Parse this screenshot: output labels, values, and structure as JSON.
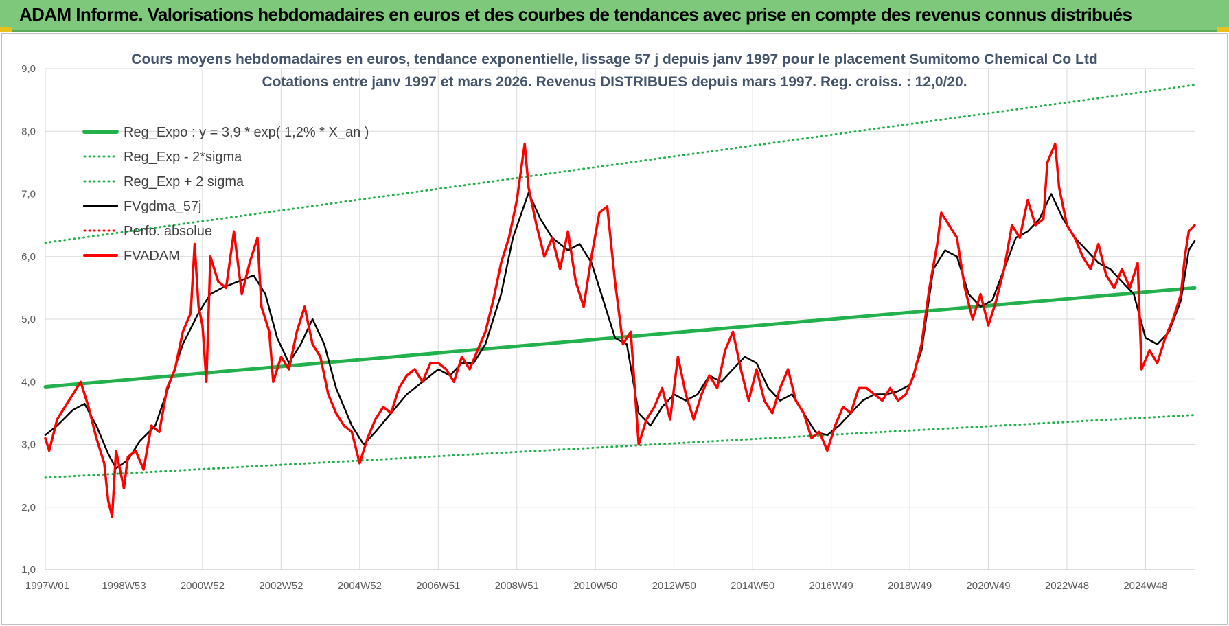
{
  "banner": {
    "title": "ADAM Informe. Valorisations hebdomadaires en euros et des courbes de tendances avec prise en compte des revenus connus distribués",
    "accent": "#7dc87a"
  },
  "chart_data": {
    "type": "line",
    "title": "Cours moyens hebdomadaires en euros, tendance exponentielle, lissage 57 j depuis janv 1997 pour le placement Sumitomo Chemical Co Ltd",
    "subtitle": "Cotations entre janv 1997 et mars 2026. Revenus DISTRIBUES depuis mars 1997. Reg. croiss. : 12,0/20.",
    "xlabel": "",
    "ylabel": "",
    "ylim": [
      1.0,
      9.0
    ],
    "xlim": [
      1997.0,
      2026.25
    ],
    "y_ticks": [
      "1,0",
      "2,0",
      "3,0",
      "4,0",
      "5,0",
      "6,0",
      "7,0",
      "8,0",
      "9,0"
    ],
    "x_ticks": [
      {
        "label": "1997W01",
        "x": 1997.0
      },
      {
        "label": "1998W53",
        "x": 1999.0
      },
      {
        "label": "2000W52",
        "x": 2001.0
      },
      {
        "label": "2002W52",
        "x": 2003.0
      },
      {
        "label": "2004W52",
        "x": 2005.0
      },
      {
        "label": "2006W51",
        "x": 2007.0
      },
      {
        "label": "2008W51",
        "x": 2009.0
      },
      {
        "label": "2010W50",
        "x": 2011.0
      },
      {
        "label": "2012W50",
        "x": 2013.0
      },
      {
        "label": "2014W50",
        "x": 2015.0
      },
      {
        "label": "2016W49",
        "x": 2017.0
      },
      {
        "label": "2018W49",
        "x": 2019.0
      },
      {
        "label": "2020W49",
        "x": 2021.0
      },
      {
        "label": "2022W48",
        "x": 2023.0
      },
      {
        "label": "2024W48",
        "x": 2025.0
      }
    ],
    "grid": true,
    "legend_position": "top-left",
    "series": [
      {
        "name": "Reg_Expo : y = 3,9 * exp( 1,2% *  X_an )",
        "color": "#22b14c",
        "style": "solid",
        "width": 5,
        "points": [
          [
            1997.0,
            3.92
          ],
          [
            2026.25,
            5.5
          ]
        ]
      },
      {
        "name": "Reg_Exp - 2*sigma",
        "color": "#22b14c",
        "style": "dotted",
        "width": 3,
        "points": [
          [
            1997.0,
            2.47
          ],
          [
            2026.25,
            3.47
          ]
        ]
      },
      {
        "name": "Reg_Exp + 2 sigma",
        "color": "#22b14c",
        "style": "dotted",
        "width": 3,
        "points": [
          [
            1997.0,
            6.22
          ],
          [
            2026.25,
            8.74
          ]
        ]
      },
      {
        "name": "FVgdma_57j",
        "color": "#000000",
        "style": "solid",
        "width": 2.5,
        "points": [
          [
            1997.0,
            3.15
          ],
          [
            1997.3,
            3.3
          ],
          [
            1997.7,
            3.55
          ],
          [
            1998.0,
            3.65
          ],
          [
            1998.3,
            3.3
          ],
          [
            1998.6,
            2.85
          ],
          [
            1998.8,
            2.62
          ],
          [
            1999.1,
            2.75
          ],
          [
            1999.4,
            3.05
          ],
          [
            1999.8,
            3.3
          ],
          [
            2000.1,
            3.85
          ],
          [
            2000.5,
            4.6
          ],
          [
            2000.9,
            5.1
          ],
          [
            2001.2,
            5.4
          ],
          [
            2001.5,
            5.5
          ],
          [
            2001.9,
            5.6
          ],
          [
            2002.3,
            5.7
          ],
          [
            2002.6,
            5.4
          ],
          [
            2002.9,
            4.7
          ],
          [
            2003.2,
            4.3
          ],
          [
            2003.5,
            4.6
          ],
          [
            2003.8,
            5.0
          ],
          [
            2004.1,
            4.6
          ],
          [
            2004.4,
            3.9
          ],
          [
            2004.8,
            3.3
          ],
          [
            2005.1,
            3.0
          ],
          [
            2005.4,
            3.2
          ],
          [
            2005.8,
            3.5
          ],
          [
            2006.2,
            3.8
          ],
          [
            2006.6,
            4.0
          ],
          [
            2007.0,
            4.2
          ],
          [
            2007.3,
            4.1
          ],
          [
            2007.6,
            4.3
          ],
          [
            2007.9,
            4.3
          ],
          [
            2008.2,
            4.6
          ],
          [
            2008.6,
            5.4
          ],
          [
            2008.9,
            6.3
          ],
          [
            2009.3,
            7.02
          ],
          [
            2009.6,
            6.6
          ],
          [
            2009.9,
            6.3
          ],
          [
            2010.3,
            6.1
          ],
          [
            2010.6,
            6.2
          ],
          [
            2010.9,
            5.9
          ],
          [
            2011.2,
            5.3
          ],
          [
            2011.5,
            4.7
          ],
          [
            2011.8,
            4.6
          ],
          [
            2012.1,
            3.5
          ],
          [
            2012.4,
            3.3
          ],
          [
            2012.7,
            3.6
          ],
          [
            2013.0,
            3.8
          ],
          [
            2013.3,
            3.7
          ],
          [
            2013.6,
            3.8
          ],
          [
            2013.9,
            4.1
          ],
          [
            2014.2,
            4.0
          ],
          [
            2014.5,
            4.2
          ],
          [
            2014.8,
            4.4
          ],
          [
            2015.1,
            4.3
          ],
          [
            2015.4,
            3.9
          ],
          [
            2015.7,
            3.7
          ],
          [
            2016.0,
            3.8
          ],
          [
            2016.3,
            3.5
          ],
          [
            2016.6,
            3.2
          ],
          [
            2016.9,
            3.15
          ],
          [
            2017.2,
            3.3
          ],
          [
            2017.5,
            3.5
          ],
          [
            2017.8,
            3.7
          ],
          [
            2018.1,
            3.8
          ],
          [
            2018.4,
            3.8
          ],
          [
            2018.7,
            3.85
          ],
          [
            2019.0,
            3.95
          ],
          [
            2019.3,
            4.5
          ],
          [
            2019.6,
            5.8
          ],
          [
            2019.9,
            6.1
          ],
          [
            2020.2,
            6.0
          ],
          [
            2020.5,
            5.4
          ],
          [
            2020.8,
            5.2
          ],
          [
            2021.1,
            5.3
          ],
          [
            2021.4,
            5.8
          ],
          [
            2021.7,
            6.3
          ],
          [
            2022.0,
            6.4
          ],
          [
            2022.3,
            6.6
          ],
          [
            2022.6,
            7.0
          ],
          [
            2022.9,
            6.6
          ],
          [
            2023.2,
            6.3
          ],
          [
            2023.5,
            6.1
          ],
          [
            2023.8,
            5.9
          ],
          [
            2024.1,
            5.8
          ],
          [
            2024.4,
            5.6
          ],
          [
            2024.7,
            5.4
          ],
          [
            2025.0,
            4.7
          ],
          [
            2025.3,
            4.6
          ],
          [
            2025.6,
            4.8
          ],
          [
            2025.9,
            5.3
          ],
          [
            2026.1,
            6.1
          ],
          [
            2026.25,
            6.25
          ]
        ]
      },
      {
        "name": "Perfo. absolue",
        "color": "#ff0000",
        "style": "dotted",
        "width": 2,
        "points": []
      },
      {
        "name": "FVADAM",
        "color": "#ff0000",
        "style": "solid",
        "width": 3.5,
        "points": [
          [
            1997.0,
            3.1
          ],
          [
            1997.1,
            2.9
          ],
          [
            1997.3,
            3.4
          ],
          [
            1997.5,
            3.6
          ],
          [
            1997.7,
            3.8
          ],
          [
            1997.9,
            4.0
          ],
          [
            1998.1,
            3.6
          ],
          [
            1998.3,
            3.1
          ],
          [
            1998.5,
            2.7
          ],
          [
            1998.6,
            2.1
          ],
          [
            1998.7,
            1.85
          ],
          [
            1998.8,
            2.9
          ],
          [
            1998.9,
            2.6
          ],
          [
            1999.0,
            2.3
          ],
          [
            1999.1,
            2.8
          ],
          [
            1999.3,
            2.9
          ],
          [
            1999.5,
            2.6
          ],
          [
            1999.7,
            3.3
          ],
          [
            1999.9,
            3.2
          ],
          [
            2000.1,
            3.9
          ],
          [
            2000.3,
            4.2
          ],
          [
            2000.5,
            4.8
          ],
          [
            2000.7,
            5.1
          ],
          [
            2000.8,
            6.2
          ],
          [
            2000.9,
            5.2
          ],
          [
            2001.0,
            4.9
          ],
          [
            2001.1,
            4.0
          ],
          [
            2001.2,
            6.0
          ],
          [
            2001.4,
            5.6
          ],
          [
            2001.6,
            5.5
          ],
          [
            2001.8,
            6.4
          ],
          [
            2002.0,
            5.4
          ],
          [
            2002.2,
            5.9
          ],
          [
            2002.4,
            6.3
          ],
          [
            2002.5,
            5.2
          ],
          [
            2002.7,
            4.8
          ],
          [
            2002.8,
            4.0
          ],
          [
            2003.0,
            4.4
          ],
          [
            2003.2,
            4.2
          ],
          [
            2003.4,
            4.8
          ],
          [
            2003.6,
            5.2
          ],
          [
            2003.8,
            4.6
          ],
          [
            2004.0,
            4.4
          ],
          [
            2004.2,
            3.8
          ],
          [
            2004.4,
            3.5
          ],
          [
            2004.6,
            3.3
          ],
          [
            2004.8,
            3.2
          ],
          [
            2005.0,
            2.7
          ],
          [
            2005.2,
            3.1
          ],
          [
            2005.4,
            3.4
          ],
          [
            2005.6,
            3.6
          ],
          [
            2005.8,
            3.5
          ],
          [
            2006.0,
            3.9
          ],
          [
            2006.2,
            4.1
          ],
          [
            2006.4,
            4.2
          ],
          [
            2006.6,
            4.0
          ],
          [
            2006.8,
            4.3
          ],
          [
            2007.0,
            4.3
          ],
          [
            2007.2,
            4.2
          ],
          [
            2007.4,
            4.0
          ],
          [
            2007.6,
            4.4
          ],
          [
            2007.8,
            4.2
          ],
          [
            2008.0,
            4.5
          ],
          [
            2008.2,
            4.8
          ],
          [
            2008.4,
            5.3
          ],
          [
            2008.6,
            5.9
          ],
          [
            2008.8,
            6.3
          ],
          [
            2009.0,
            6.9
          ],
          [
            2009.2,
            7.8
          ],
          [
            2009.3,
            7.1
          ],
          [
            2009.5,
            6.5
          ],
          [
            2009.7,
            6.0
          ],
          [
            2009.9,
            6.3
          ],
          [
            2010.1,
            5.8
          ],
          [
            2010.3,
            6.4
          ],
          [
            2010.5,
            5.6
          ],
          [
            2010.7,
            5.2
          ],
          [
            2010.9,
            6.0
          ],
          [
            2011.1,
            6.7
          ],
          [
            2011.3,
            6.8
          ],
          [
            2011.5,
            5.6
          ],
          [
            2011.7,
            4.6
          ],
          [
            2011.9,
            4.8
          ],
          [
            2012.1,
            3.0
          ],
          [
            2012.3,
            3.4
          ],
          [
            2012.5,
            3.6
          ],
          [
            2012.7,
            3.9
          ],
          [
            2012.9,
            3.4
          ],
          [
            2013.1,
            4.4
          ],
          [
            2013.3,
            3.8
          ],
          [
            2013.5,
            3.4
          ],
          [
            2013.7,
            3.8
          ],
          [
            2013.9,
            4.1
          ],
          [
            2014.1,
            3.9
          ],
          [
            2014.3,
            4.5
          ],
          [
            2014.5,
            4.8
          ],
          [
            2014.7,
            4.2
          ],
          [
            2014.9,
            3.7
          ],
          [
            2015.1,
            4.2
          ],
          [
            2015.3,
            3.7
          ],
          [
            2015.5,
            3.5
          ],
          [
            2015.7,
            3.9
          ],
          [
            2015.9,
            4.2
          ],
          [
            2016.1,
            3.7
          ],
          [
            2016.3,
            3.5
          ],
          [
            2016.5,
            3.1
          ],
          [
            2016.7,
            3.2
          ],
          [
            2016.9,
            2.9
          ],
          [
            2017.1,
            3.3
          ],
          [
            2017.3,
            3.6
          ],
          [
            2017.5,
            3.5
          ],
          [
            2017.7,
            3.9
          ],
          [
            2017.9,
            3.9
          ],
          [
            2018.1,
            3.8
          ],
          [
            2018.3,
            3.7
          ],
          [
            2018.5,
            3.9
          ],
          [
            2018.7,
            3.7
          ],
          [
            2018.9,
            3.8
          ],
          [
            2019.1,
            4.1
          ],
          [
            2019.3,
            4.6
          ],
          [
            2019.5,
            5.5
          ],
          [
            2019.7,
            6.2
          ],
          [
            2019.8,
            6.7
          ],
          [
            2020.0,
            6.5
          ],
          [
            2020.2,
            6.3
          ],
          [
            2020.4,
            5.5
          ],
          [
            2020.6,
            5.0
          ],
          [
            2020.8,
            5.4
          ],
          [
            2021.0,
            4.9
          ],
          [
            2021.2,
            5.3
          ],
          [
            2021.4,
            5.8
          ],
          [
            2021.6,
            6.5
          ],
          [
            2021.8,
            6.3
          ],
          [
            2022.0,
            6.9
          ],
          [
            2022.2,
            6.5
          ],
          [
            2022.4,
            6.6
          ],
          [
            2022.5,
            7.5
          ],
          [
            2022.7,
            7.8
          ],
          [
            2022.8,
            7.1
          ],
          [
            2023.0,
            6.5
          ],
          [
            2023.2,
            6.3
          ],
          [
            2023.4,
            6.0
          ],
          [
            2023.6,
            5.8
          ],
          [
            2023.8,
            6.2
          ],
          [
            2024.0,
            5.7
          ],
          [
            2024.2,
            5.5
          ],
          [
            2024.4,
            5.8
          ],
          [
            2024.6,
            5.5
          ],
          [
            2024.8,
            5.9
          ],
          [
            2024.9,
            4.2
          ],
          [
            2025.1,
            4.5
          ],
          [
            2025.3,
            4.3
          ],
          [
            2025.5,
            4.7
          ],
          [
            2025.7,
            5.0
          ],
          [
            2025.9,
            5.4
          ],
          [
            2026.0,
            6.0
          ],
          [
            2026.1,
            6.4
          ],
          [
            2026.25,
            6.5
          ]
        ]
      }
    ]
  }
}
